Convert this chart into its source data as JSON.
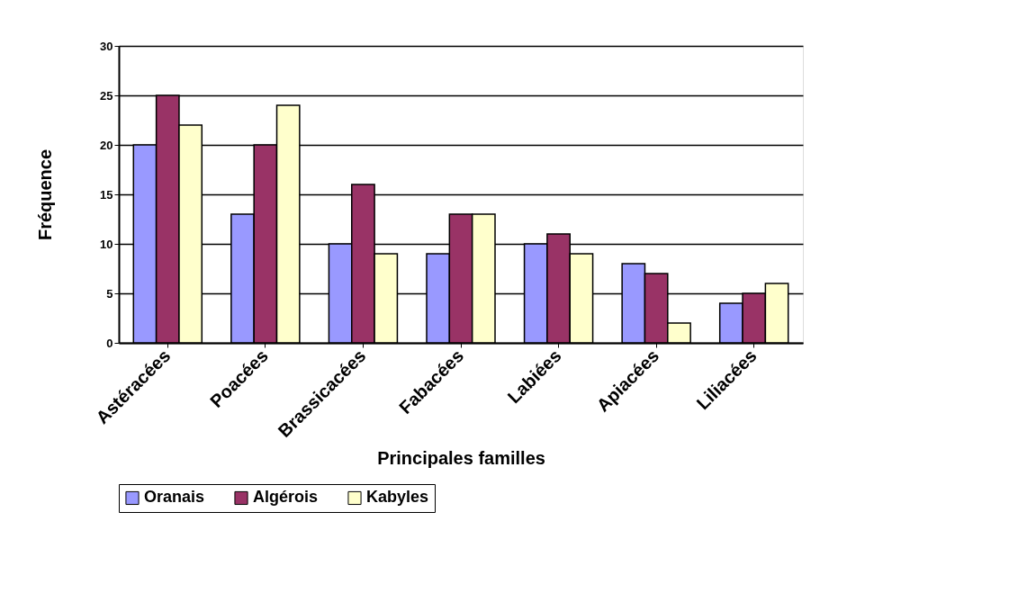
{
  "chart_data": {
    "type": "bar",
    "xlabel": "Principales familles",
    "ylabel": "Fréquence",
    "categories": [
      "Astéracées",
      "Poacées",
      "Brassicacées",
      "Fabacées",
      "Labiées",
      "Apiacées",
      "Liliacées"
    ],
    "series": [
      {
        "name": "Oranais",
        "color": "#9999ff",
        "values": [
          20,
          13,
          10,
          9,
          10,
          8,
          4
        ]
      },
      {
        "name": "Algérois",
        "color": "#993366",
        "values": [
          25,
          20,
          16,
          13,
          11,
          7,
          5
        ]
      },
      {
        "name": "Kabyles",
        "color": "#ffffcc",
        "values": [
          22,
          24,
          9,
          13,
          9,
          2,
          6
        ]
      }
    ],
    "ylim": [
      0,
      30
    ],
    "yticks": [
      0,
      5,
      10,
      15,
      20,
      25,
      30
    ],
    "grid": "y",
    "legend": "bottom"
  }
}
